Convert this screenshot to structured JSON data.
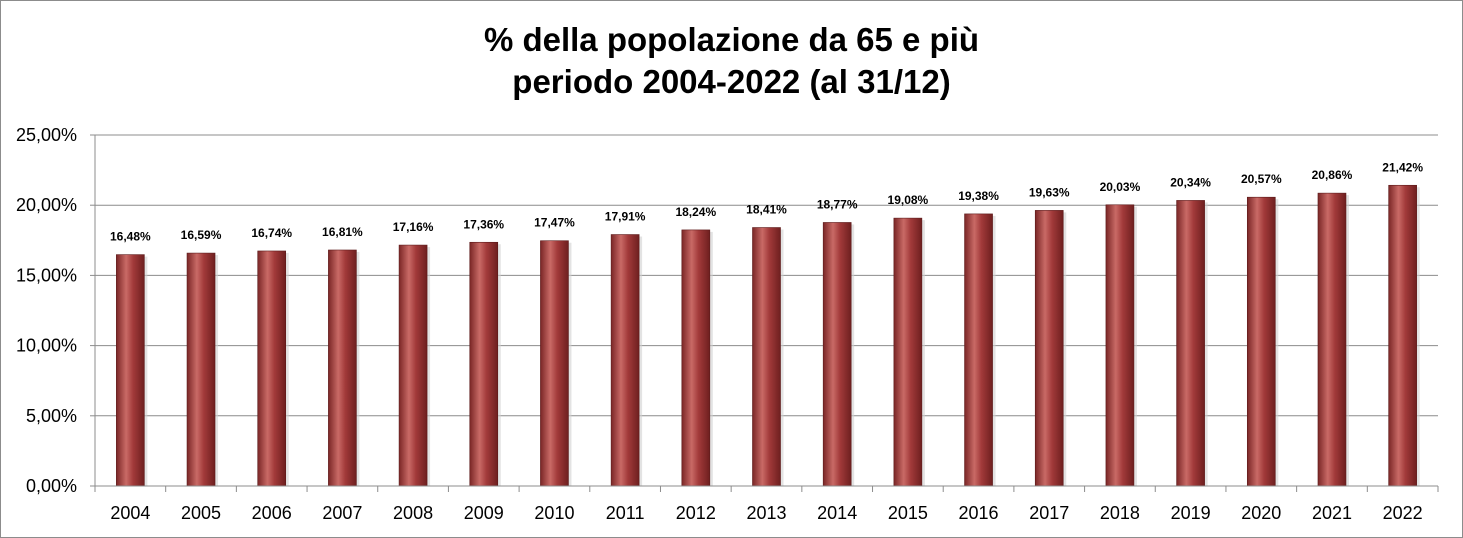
{
  "chart_data": {
    "type": "bar",
    "title_line1": "% della popolazione da 65 e più",
    "title_line2": "periodo 2004-2022 (al 31/12)",
    "xlabel": "",
    "ylabel": "",
    "categories": [
      "2004",
      "2005",
      "2006",
      "2007",
      "2008",
      "2009",
      "2010",
      "2011",
      "2012",
      "2013",
      "2014",
      "2015",
      "2016",
      "2017",
      "2018",
      "2019",
      "2020",
      "2021",
      "2022"
    ],
    "values": [
      16.48,
      16.59,
      16.74,
      16.81,
      17.16,
      17.36,
      17.47,
      17.91,
      18.24,
      18.41,
      18.77,
      19.08,
      19.38,
      19.63,
      20.03,
      20.34,
      20.57,
      20.86,
      21.42
    ],
    "data_labels": [
      "16,48%",
      "16,59%",
      "16,74%",
      "16,81%",
      "17,16%",
      "17,36%",
      "17,47%",
      "17,91%",
      "18,24%",
      "18,41%",
      "18,77%",
      "19,08%",
      "19,38%",
      "19,63%",
      "20,03%",
      "20,34%",
      "20,57%",
      "20,86%",
      "21,42%"
    ],
    "ylim": [
      0,
      25
    ],
    "yticks": [
      0,
      5,
      10,
      15,
      20,
      25
    ],
    "ytick_labels": [
      "0,00%",
      "5,00%",
      "10,00%",
      "15,00%",
      "20,00%",
      "25,00%"
    ],
    "grid": true,
    "legend": "none",
    "bar_color": "#a23a3a",
    "bar_highlight": "#c96a66",
    "bar_shadow": "#6e1f1f"
  }
}
